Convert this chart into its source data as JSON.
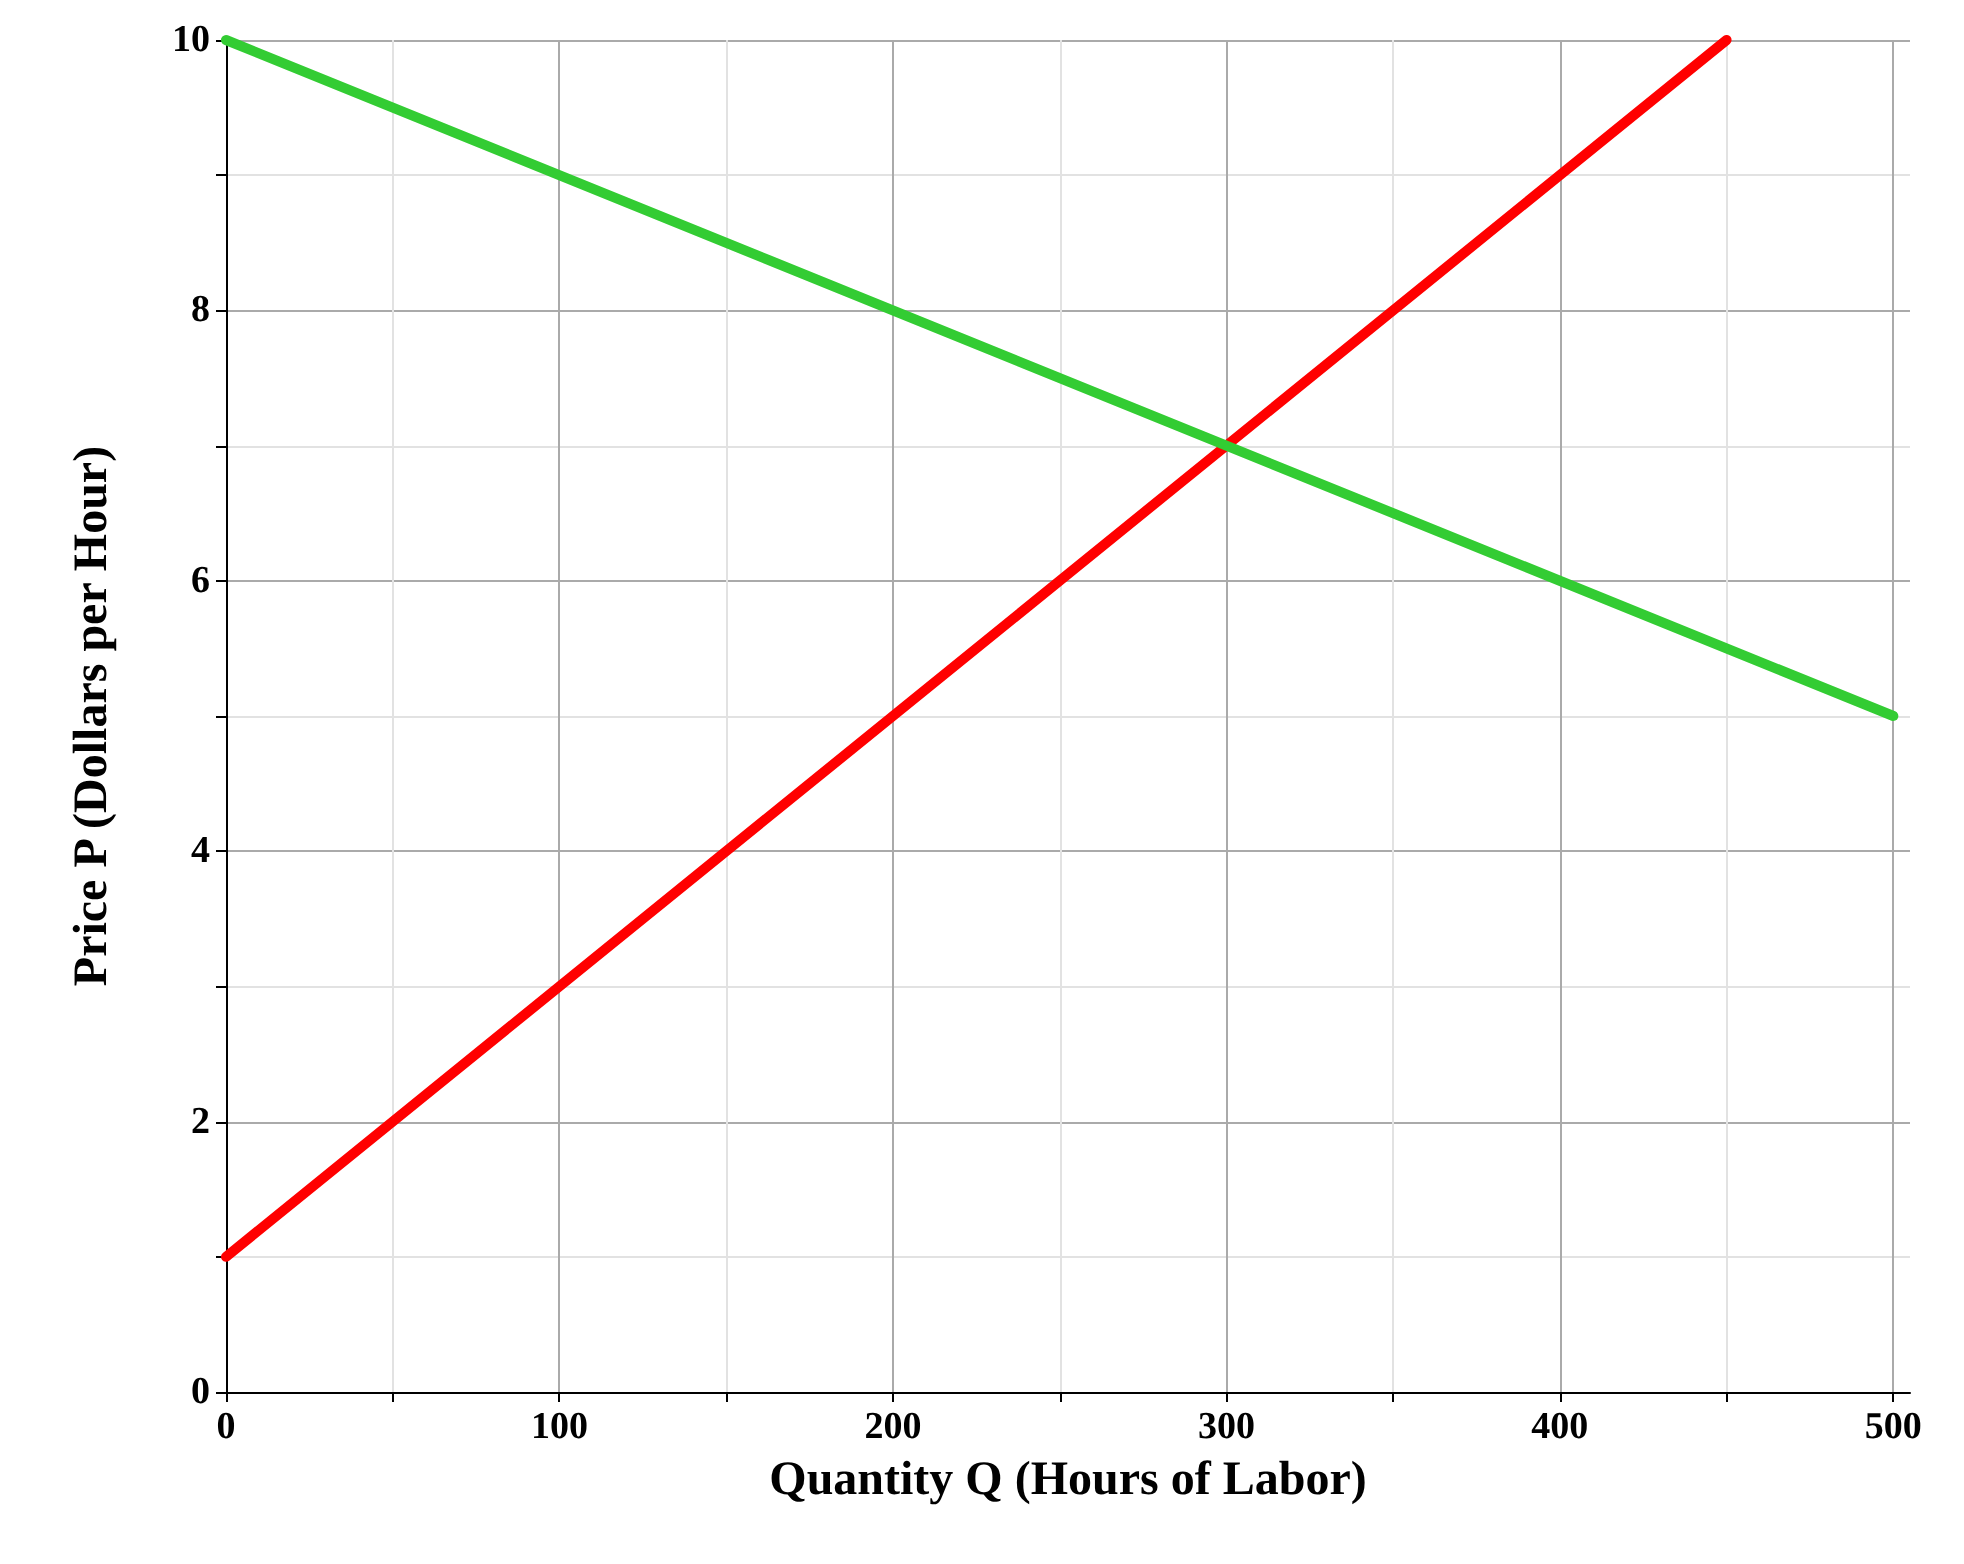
{
  "chart_data": {
    "type": "line",
    "xlabel": "Quantity Q (Hours of Labor)",
    "ylabel": "Price P (Dollars per Hour)",
    "xlim": [
      0,
      505
    ],
    "ylim": [
      0,
      10
    ],
    "xticks": [
      0,
      100,
      200,
      300,
      400,
      500
    ],
    "yticks": [
      0,
      2,
      4,
      6,
      8,
      10
    ],
    "grid": true,
    "marker": "none",
    "line_style": "solid",
    "series": [
      {
        "color": "#ff0000",
        "x": [
          0,
          450
        ],
        "values": [
          1,
          10
        ]
      },
      {
        "color": "#33cc33",
        "x": [
          0,
          500
        ],
        "values": [
          10,
          5
        ]
      }
    ]
  }
}
